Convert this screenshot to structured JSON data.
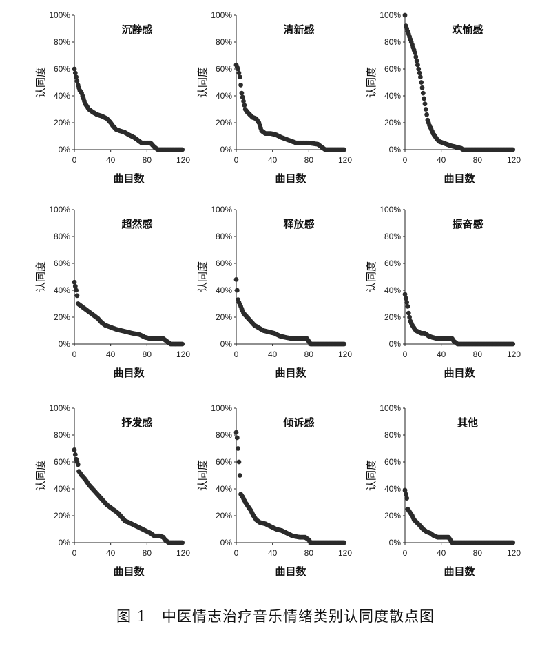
{
  "caption": "图 1　中医情志治疗音乐情绪类别认同度散点图",
  "chart_data": [
    {
      "type": "scatter",
      "title": "沉静感",
      "xlabel": "曲目数",
      "ylabel": "认同度",
      "xticks": [
        0,
        40,
        80,
        120
      ],
      "yticks": [
        "0%",
        "20%",
        "40%",
        "60%",
        "80%",
        "100%"
      ],
      "xlim": [
        0,
        120
      ],
      "ylim": [
        0,
        100
      ],
      "n": 120,
      "points": [
        [
          0,
          60
        ],
        [
          2,
          54
        ],
        [
          4,
          48
        ],
        [
          6,
          44
        ],
        [
          8,
          42
        ],
        [
          10,
          38
        ],
        [
          12,
          34
        ],
        [
          14,
          32
        ],
        [
          16,
          30
        ],
        [
          20,
          28
        ],
        [
          25,
          26
        ],
        [
          30,
          25
        ],
        [
          36,
          23
        ],
        [
          40,
          20
        ],
        [
          42,
          18
        ],
        [
          46,
          15
        ],
        [
          50,
          14
        ],
        [
          55,
          13
        ],
        [
          60,
          11
        ],
        [
          66,
          9
        ],
        [
          70,
          7
        ],
        [
          74,
          5
        ],
        [
          84,
          5
        ],
        [
          88,
          2
        ],
        [
          90,
          1
        ],
        [
          92,
          0
        ],
        [
          120,
          0
        ]
      ]
    },
    {
      "type": "scatter",
      "title": "清新感",
      "xlabel": "曲目数",
      "ylabel": "认同度",
      "xticks": [
        0,
        40,
        80,
        120
      ],
      "yticks": [
        "0%",
        "20%",
        "40%",
        "60%",
        "80%",
        "100%"
      ],
      "xlim": [
        0,
        120
      ],
      "ylim": [
        0,
        100
      ],
      "n": 120,
      "points": [
        [
          0,
          63
        ],
        [
          2,
          60
        ],
        [
          4,
          54
        ],
        [
          5,
          48
        ],
        [
          6,
          42
        ],
        [
          8,
          36
        ],
        [
          10,
          30
        ],
        [
          12,
          28
        ],
        [
          15,
          26
        ],
        [
          18,
          24
        ],
        [
          22,
          23
        ],
        [
          25,
          20
        ],
        [
          28,
          14
        ],
        [
          32,
          12
        ],
        [
          38,
          12
        ],
        [
          44,
          11
        ],
        [
          50,
          9
        ],
        [
          58,
          7
        ],
        [
          66,
          5
        ],
        [
          80,
          5
        ],
        [
          90,
          4
        ],
        [
          94,
          2
        ],
        [
          96,
          1
        ],
        [
          98,
          0
        ],
        [
          120,
          0
        ]
      ]
    },
    {
      "type": "scatter",
      "title": "欢愉感",
      "xlabel": "曲目数",
      "ylabel": "认同度",
      "xticks": [
        0,
        40,
        80,
        120
      ],
      "yticks": [
        "0%",
        "20%",
        "40%",
        "60%",
        "80%",
        "100%"
      ],
      "xlim": [
        0,
        120
      ],
      "ylim": [
        0,
        100
      ],
      "n": 120,
      "points": [
        [
          0,
          100
        ],
        [
          1,
          92
        ],
        [
          3,
          88
        ],
        [
          5,
          84
        ],
        [
          7,
          80
        ],
        [
          9,
          76
        ],
        [
          11,
          72
        ],
        [
          13,
          66
        ],
        [
          15,
          60
        ],
        [
          17,
          54
        ],
        [
          19,
          46
        ],
        [
          21,
          38
        ],
        [
          23,
          30
        ],
        [
          25,
          22
        ],
        [
          27,
          18
        ],
        [
          29,
          15
        ],
        [
          31,
          12
        ],
        [
          33,
          10
        ],
        [
          35,
          8
        ],
        [
          38,
          6
        ],
        [
          42,
          5
        ],
        [
          46,
          4
        ],
        [
          50,
          3
        ],
        [
          56,
          2
        ],
        [
          62,
          1
        ],
        [
          64,
          0
        ],
        [
          120,
          0
        ]
      ]
    },
    {
      "type": "scatter",
      "title": "超然感",
      "xlabel": "曲目数",
      "ylabel": "认同度",
      "xticks": [
        0,
        40,
        80,
        120
      ],
      "yticks": [
        "0%",
        "20%",
        "40%",
        "60%",
        "80%",
        "100%"
      ],
      "xlim": [
        0,
        120
      ],
      "ylim": [
        0,
        100
      ],
      "n": 120,
      "points": [
        [
          0,
          46
        ],
        [
          2,
          40
        ],
        [
          3,
          36
        ],
        [
          4,
          30
        ],
        [
          6,
          29
        ],
        [
          10,
          27
        ],
        [
          14,
          25
        ],
        [
          18,
          23
        ],
        [
          22,
          21
        ],
        [
          26,
          19
        ],
        [
          30,
          16
        ],
        [
          34,
          14
        ],
        [
          38,
          13
        ],
        [
          42,
          12
        ],
        [
          46,
          11
        ],
        [
          52,
          10
        ],
        [
          58,
          9
        ],
        [
          64,
          8
        ],
        [
          72,
          7
        ],
        [
          78,
          5
        ],
        [
          84,
          4
        ],
        [
          92,
          4
        ],
        [
          98,
          4
        ],
        [
          102,
          2
        ],
        [
          104,
          1
        ],
        [
          106,
          0
        ],
        [
          120,
          0
        ]
      ]
    },
    {
      "type": "scatter",
      "title": "释放感",
      "xlabel": "曲目数",
      "ylabel": "认同度",
      "xticks": [
        0,
        40,
        80,
        120
      ],
      "yticks": [
        "0%",
        "20%",
        "40%",
        "60%",
        "80%",
        "100%"
      ],
      "xlim": [
        0,
        120
      ],
      "ylim": [
        0,
        100
      ],
      "n": 120,
      "points": [
        [
          0,
          48
        ],
        [
          1,
          40
        ],
        [
          2,
          33
        ],
        [
          3,
          31
        ],
        [
          5,
          28
        ],
        [
          8,
          23
        ],
        [
          12,
          20
        ],
        [
          16,
          17
        ],
        [
          20,
          14
        ],
        [
          25,
          12
        ],
        [
          30,
          10
        ],
        [
          36,
          9
        ],
        [
          42,
          8
        ],
        [
          48,
          6
        ],
        [
          54,
          5
        ],
        [
          62,
          4
        ],
        [
          70,
          4
        ],
        [
          78,
          4
        ],
        [
          80,
          2
        ],
        [
          82,
          0
        ],
        [
          120,
          0
        ]
      ]
    },
    {
      "type": "scatter",
      "title": "振奋感",
      "xlabel": "曲目数",
      "ylabel": "认同度",
      "xticks": [
        0,
        40,
        80,
        120
      ],
      "yticks": [
        "0%",
        "20%",
        "40%",
        "60%",
        "80%",
        "100%"
      ],
      "xlim": [
        0,
        120
      ],
      "ylim": [
        0,
        100
      ],
      "n": 120,
      "points": [
        [
          0,
          37
        ],
        [
          1,
          34
        ],
        [
          2,
          31
        ],
        [
          3,
          28
        ],
        [
          4,
          23
        ],
        [
          5,
          20
        ],
        [
          6,
          17
        ],
        [
          8,
          14
        ],
        [
          10,
          12
        ],
        [
          12,
          10
        ],
        [
          15,
          9
        ],
        [
          18,
          8
        ],
        [
          22,
          8
        ],
        [
          26,
          6
        ],
        [
          30,
          5
        ],
        [
          36,
          4
        ],
        [
          44,
          4
        ],
        [
          52,
          4
        ],
        [
          54,
          2
        ],
        [
          56,
          1
        ],
        [
          58,
          0
        ],
        [
          120,
          0
        ]
      ]
    },
    {
      "type": "scatter",
      "title": "抒发感",
      "xlabel": "曲目数",
      "ylabel": "认同度",
      "xticks": [
        0,
        40,
        80,
        120
      ],
      "yticks": [
        "0%",
        "20%",
        "40%",
        "60%",
        "80%",
        "100%"
      ],
      "xlim": [
        0,
        120
      ],
      "ylim": [
        0,
        100
      ],
      "n": 120,
      "points": [
        [
          0,
          69
        ],
        [
          2,
          62
        ],
        [
          4,
          58
        ],
        [
          5,
          53
        ],
        [
          8,
          50
        ],
        [
          12,
          47
        ],
        [
          16,
          43
        ],
        [
          20,
          40
        ],
        [
          24,
          37
        ],
        [
          28,
          34
        ],
        [
          32,
          31
        ],
        [
          36,
          28
        ],
        [
          40,
          26
        ],
        [
          44,
          24
        ],
        [
          48,
          22
        ],
        [
          52,
          19
        ],
        [
          56,
          16
        ],
        [
          60,
          15
        ],
        [
          66,
          13
        ],
        [
          72,
          11
        ],
        [
          78,
          9
        ],
        [
          84,
          7
        ],
        [
          88,
          5
        ],
        [
          94,
          5
        ],
        [
          98,
          4
        ],
        [
          100,
          2
        ],
        [
          102,
          1
        ],
        [
          104,
          0
        ],
        [
          120,
          0
        ]
      ]
    },
    {
      "type": "scatter",
      "title": "倾诉感",
      "xlabel": "曲目数",
      "ylabel": "认同度",
      "xticks": [
        0,
        40,
        80,
        120
      ],
      "yticks": [
        "0%",
        "20%",
        "40%",
        "60%",
        "80%",
        "100%"
      ],
      "xlim": [
        0,
        120
      ],
      "ylim": [
        0,
        100
      ],
      "n": 120,
      "points": [
        [
          0,
          82
        ],
        [
          1,
          78
        ],
        [
          2,
          70
        ],
        [
          3,
          60
        ],
        [
          4,
          50
        ],
        [
          5,
          36
        ],
        [
          7,
          34
        ],
        [
          10,
          30
        ],
        [
          13,
          27
        ],
        [
          16,
          24
        ],
        [
          19,
          20
        ],
        [
          22,
          17
        ],
        [
          26,
          15
        ],
        [
          32,
          14
        ],
        [
          38,
          12
        ],
        [
          44,
          10
        ],
        [
          50,
          9
        ],
        [
          56,
          7
        ],
        [
          62,
          5
        ],
        [
          70,
          4
        ],
        [
          76,
          4
        ],
        [
          80,
          2
        ],
        [
          81,
          1
        ],
        [
          82,
          0
        ],
        [
          120,
          0
        ]
      ]
    },
    {
      "type": "scatter",
      "title": "其他",
      "xlabel": "曲目数",
      "ylabel": "认同度",
      "xticks": [
        0,
        40,
        80,
        120
      ],
      "yticks": [
        "0%",
        "20%",
        "40%",
        "60%",
        "80%",
        "100%"
      ],
      "xlim": [
        0,
        120
      ],
      "ylim": [
        0,
        100
      ],
      "n": 120,
      "points": [
        [
          0,
          39
        ],
        [
          1,
          36
        ],
        [
          2,
          33
        ],
        [
          3,
          25
        ],
        [
          5,
          23
        ],
        [
          8,
          20
        ],
        [
          10,
          17
        ],
        [
          13,
          15
        ],
        [
          16,
          13
        ],
        [
          20,
          10
        ],
        [
          24,
          8
        ],
        [
          28,
          7
        ],
        [
          32,
          5
        ],
        [
          36,
          4
        ],
        [
          42,
          4
        ],
        [
          48,
          4
        ],
        [
          50,
          2
        ],
        [
          52,
          0
        ],
        [
          120,
          0
        ]
      ]
    }
  ]
}
